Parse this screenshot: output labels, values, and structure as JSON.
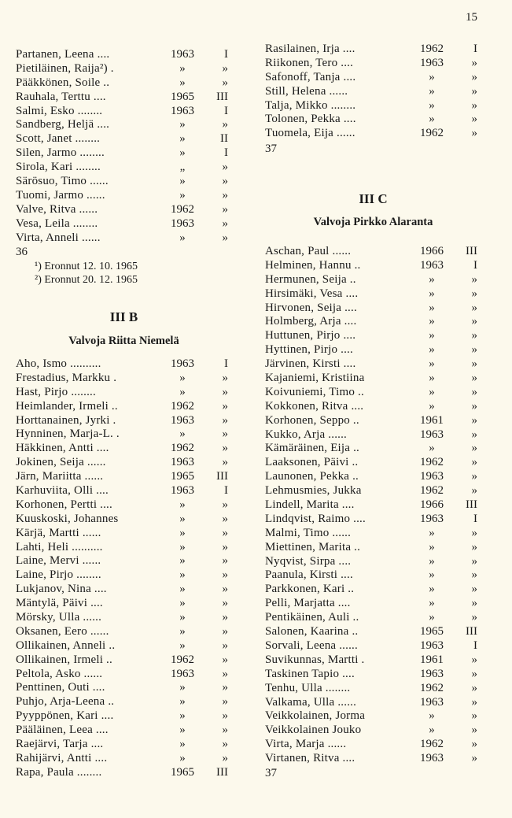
{
  "page_number": "15",
  "left": {
    "continued_rows": [
      {
        "name": "Partanen, Leena ....",
        "year": "1963",
        "class": "I"
      },
      {
        "name": "Pietiläinen, Raija²) .",
        "year": "»",
        "class": "»"
      },
      {
        "name": "Pääkkönen, Soile ..",
        "year": "»",
        "class": "»"
      },
      {
        "name": "Rauhala, Terttu ....",
        "year": "1965",
        "class": "III"
      },
      {
        "name": "Salmi, Esko ........",
        "year": "1963",
        "class": "I"
      },
      {
        "name": "Sandberg, Heljä ....",
        "year": "»",
        "class": "»"
      },
      {
        "name": "Scott, Janet ........",
        "year": "»",
        "class": "II"
      },
      {
        "name": "Silen, Jarmo ........",
        "year": "»",
        "class": "I"
      },
      {
        "name": "Sirola, Kari ........",
        "year": "„",
        "class": "»"
      },
      {
        "name": "Särösuo, Timo ......",
        "year": "»",
        "class": "»"
      },
      {
        "name": "Tuomi, Jarmo ......",
        "year": "»",
        "class": "»"
      },
      {
        "name": "Valve, Ritva ......",
        "year": "1962",
        "class": "»"
      },
      {
        "name": "Vesa, Leila ........",
        "year": "1963",
        "class": "»"
      },
      {
        "name": "Virta, Anneli ......",
        "year": "»",
        "class": "»"
      }
    ],
    "count": "36",
    "footnotes": [
      "¹) Eronnut 12. 10. 1965",
      "²) Eronnut 20. 12. 1965"
    ],
    "section_title": "III B",
    "supervisor": "Valvoja Riitta Niemelä",
    "rows": [
      {
        "name": "Aho, Ismo ..........",
        "year": "1963",
        "class": "I"
      },
      {
        "name": "Frestadius, Markku .",
        "year": "»",
        "class": "»"
      },
      {
        "name": "Hast, Pirjo ........",
        "year": "»",
        "class": "»"
      },
      {
        "name": "Heimlander, Irmeli ..",
        "year": "1962",
        "class": "»"
      },
      {
        "name": "Horttanainen, Jyrki .",
        "year": "1963",
        "class": "»"
      },
      {
        "name": "Hynninen, Marja-L. .",
        "year": "»",
        "class": "»"
      },
      {
        "name": "Häkkinen, Antti ....",
        "year": "1962",
        "class": "»"
      },
      {
        "name": "Jokinen, Seija ......",
        "year": "1963",
        "class": "»"
      },
      {
        "name": "Järn, Mariitta ......",
        "year": "1965",
        "class": "III"
      },
      {
        "name": "Karhuviita, Olli ....",
        "year": "1963",
        "class": "I"
      },
      {
        "name": "Korhonen, Pertti ....",
        "year": "»",
        "class": "»"
      },
      {
        "name": "Kuuskoski, Johannes",
        "year": "»",
        "class": "»"
      },
      {
        "name": "Kärjä, Martti ......",
        "year": "»",
        "class": "»"
      },
      {
        "name": "Lahti, Heli ..........",
        "year": "»",
        "class": "»"
      },
      {
        "name": "Laine, Mervi ......",
        "year": "»",
        "class": "»"
      },
      {
        "name": "Laine, Pirjo ........",
        "year": "»",
        "class": "»"
      },
      {
        "name": "Lukjanov, Nina ....",
        "year": "»",
        "class": "»"
      },
      {
        "name": "Mäntylä, Päivi ....",
        "year": "»",
        "class": "»"
      },
      {
        "name": "Mörsky, Ulla ......",
        "year": "»",
        "class": "»"
      },
      {
        "name": "Oksanen, Eero ......",
        "year": "»",
        "class": "»"
      },
      {
        "name": "Ollikainen, Anneli ..",
        "year": "»",
        "class": "»"
      },
      {
        "name": "Ollikainen, Irmeli ..",
        "year": "1962",
        "class": "»"
      },
      {
        "name": "Peltola, Asko ......",
        "year": "1963",
        "class": "»"
      },
      {
        "name": "Penttinen, Outi ....",
        "year": "»",
        "class": "»"
      },
      {
        "name": "Puhjo, Arja-Leena ..",
        "year": "»",
        "class": "»"
      },
      {
        "name": "Pyyppönen, Kari ....",
        "year": "»",
        "class": "»"
      },
      {
        "name": "Pääläinen, Leea ....",
        "year": "»",
        "class": "»"
      },
      {
        "name": "Raejärvi, Tarja ....",
        "year": "»",
        "class": "»"
      },
      {
        "name": "Rahijärvi, Antti ....",
        "year": "»",
        "class": "»"
      },
      {
        "name": "Rapa, Paula ........",
        "year": "1965",
        "class": "III"
      }
    ]
  },
  "right": {
    "continued_rows": [
      {
        "name": "Rasilainen, Irja ....",
        "year": "1962",
        "class": "I"
      },
      {
        "name": "Riikonen, Tero ....",
        "year": "1963",
        "class": "»"
      },
      {
        "name": "Safonoff, Tanja ....",
        "year": "»",
        "class": "»"
      },
      {
        "name": "Still, Helena ......",
        "year": "»",
        "class": "»"
      },
      {
        "name": "Talja, Mikko ........",
        "year": "»",
        "class": "»"
      },
      {
        "name": "Tolonen, Pekka ....",
        "year": "»",
        "class": "»"
      },
      {
        "name": "Tuomela, Eija ......",
        "year": "1962",
        "class": "»"
      }
    ],
    "count": "37",
    "section_title": "III C",
    "supervisor": "Valvoja Pirkko Alaranta",
    "rows": [
      {
        "name": "Aschan, Paul ......",
        "year": "1966",
        "class": "III"
      },
      {
        "name": "Helminen, Hannu ..",
        "year": "1963",
        "class": "I"
      },
      {
        "name": "Hermunen, Seija ..",
        "year": "»",
        "class": "»"
      },
      {
        "name": "Hirsimäki, Vesa ....",
        "year": "»",
        "class": "»"
      },
      {
        "name": "Hirvonen, Seija ....",
        "year": "»",
        "class": "»"
      },
      {
        "name": "Holmberg, Arja ....",
        "year": "»",
        "class": "»"
      },
      {
        "name": "Huttunen, Pirjo ....",
        "year": "»",
        "class": "»"
      },
      {
        "name": "Hyttinen, Pirjo ....",
        "year": "»",
        "class": "»"
      },
      {
        "name": "Järvinen, Kirsti ....",
        "year": "»",
        "class": "»"
      },
      {
        "name": "Kajaniemi, Kristiina",
        "year": "»",
        "class": "»"
      },
      {
        "name": "Koivuniemi, Timo ..",
        "year": "»",
        "class": "»"
      },
      {
        "name": "Kokkonen, Ritva ....",
        "year": "»",
        "class": "»"
      },
      {
        "name": "Korhonen, Seppo ..",
        "year": "1961",
        "class": "»"
      },
      {
        "name": "Kukko, Arja ......",
        "year": "1963",
        "class": "»"
      },
      {
        "name": "Kämäräinen, Eija ..",
        "year": "»",
        "class": "»"
      },
      {
        "name": "Laaksonen, Päivi ..",
        "year": "1962",
        "class": "»"
      },
      {
        "name": "Launonen, Pekka ..",
        "year": "1963",
        "class": "»"
      },
      {
        "name": "Lehmusmies, Jukka",
        "year": "1962",
        "class": "»"
      },
      {
        "name": "Lindell, Marita ....",
        "year": "1966",
        "class": "III"
      },
      {
        "name": "Lindqvist, Raimo ....",
        "year": "1963",
        "class": "I"
      },
      {
        "name": "Malmi, Timo ......",
        "year": "»",
        "class": "»"
      },
      {
        "name": "Miettinen, Marita ..",
        "year": "»",
        "class": "»"
      },
      {
        "name": "Nyqvist, Sirpa ....",
        "year": "»",
        "class": "»"
      },
      {
        "name": "Paanula, Kirsti ....",
        "year": "»",
        "class": "»"
      },
      {
        "name": "Parkkonen, Kari ..",
        "year": "»",
        "class": "»"
      },
      {
        "name": "Pelli, Marjatta ....",
        "year": "»",
        "class": "»"
      },
      {
        "name": "Pentikäinen, Auli ..",
        "year": "»",
        "class": "»"
      },
      {
        "name": "Salonen, Kaarina ..",
        "year": "1965",
        "class": "III"
      },
      {
        "name": "Sorvali, Leena ......",
        "year": "1963",
        "class": "I"
      },
      {
        "name": "Suvikunnas, Martti .",
        "year": "1961",
        "class": "»"
      },
      {
        "name": "Taskinen Tapio ....",
        "year": "1963",
        "class": "»"
      },
      {
        "name": "Tenhu, Ulla ........",
        "year": "1962",
        "class": "»"
      },
      {
        "name": "Valkama, Ulla ......",
        "year": "1963",
        "class": "»"
      },
      {
        "name": "Veikkolainen, Jorma",
        "year": "»",
        "class": "»"
      },
      {
        "name": "Veikkolainen Jouko",
        "year": "»",
        "class": "»"
      },
      {
        "name": "Virta, Marja ......",
        "year": "1962",
        "class": "»"
      },
      {
        "name": "Virtanen, Ritva ....",
        "year": "1963",
        "class": "»"
      }
    ],
    "final_count": "37"
  }
}
